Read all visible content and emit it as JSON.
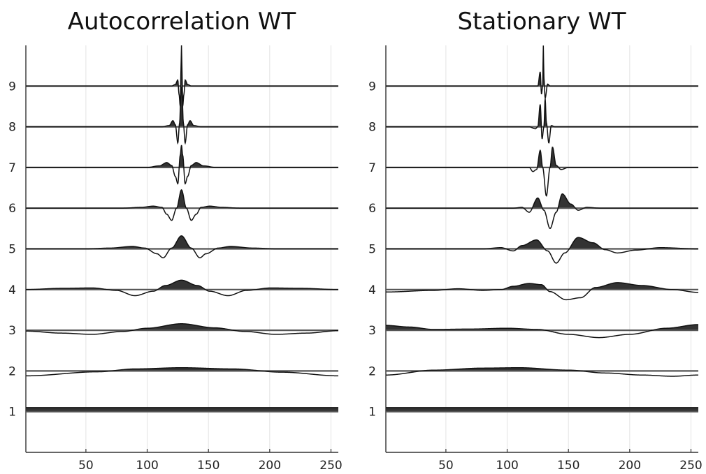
{
  "chart_data": [
    {
      "type": "line",
      "title": "Autocorrelation WT",
      "xlabel": "",
      "ylabel": "",
      "xlim": [
        1,
        256
      ],
      "ylim": [
        0,
        10
      ],
      "x_ticks": [
        50,
        100,
        150,
        200,
        250
      ],
      "y_ticks": [
        1,
        2,
        3,
        4,
        5,
        6,
        7,
        8,
        9
      ],
      "grid": true,
      "fill": "positive part of each curve filled dark",
      "series": [
        {
          "level": 1,
          "baseline": 1,
          "description": "near-constant positive band",
          "points": [
            [
              1,
              0.1
            ],
            [
              256,
              0.1
            ]
          ]
        },
        {
          "level": 2,
          "baseline": 2,
          "points": [
            [
              1,
              -0.12
            ],
            [
              60,
              -0.02
            ],
            [
              90,
              0.05
            ],
            [
              128,
              0.08
            ],
            [
              170,
              0.05
            ],
            [
              210,
              -0.03
            ],
            [
              256,
              -0.12
            ]
          ]
        },
        {
          "level": 3,
          "baseline": 3,
          "points": [
            [
              1,
              -0.02
            ],
            [
              30,
              -0.07
            ],
            [
              55,
              -0.1
            ],
            [
              80,
              -0.03
            ],
            [
              100,
              0.05
            ],
            [
              128,
              0.16
            ],
            [
              155,
              0.06
            ],
            [
              180,
              -0.03
            ],
            [
              205,
              -0.1
            ],
            [
              230,
              -0.07
            ],
            [
              256,
              -0.01
            ]
          ]
        },
        {
          "level": 4,
          "baseline": 4,
          "points": [
            [
              1,
              0.0
            ],
            [
              30,
              0.03
            ],
            [
              55,
              0.04
            ],
            [
              75,
              -0.02
            ],
            [
              90,
              -0.15
            ],
            [
              105,
              -0.04
            ],
            [
              115,
              0.1
            ],
            [
              128,
              0.23
            ],
            [
              141,
              0.1
            ],
            [
              151,
              -0.04
            ],
            [
              166,
              -0.15
            ],
            [
              181,
              -0.02
            ],
            [
              201,
              0.04
            ],
            [
              226,
              0.03
            ],
            [
              256,
              0.0
            ]
          ]
        },
        {
          "level": 5,
          "baseline": 5,
          "points": [
            [
              1,
              0.0
            ],
            [
              50,
              0.0
            ],
            [
              70,
              0.02
            ],
            [
              88,
              0.06
            ],
            [
              98,
              0.02
            ],
            [
              108,
              -0.12
            ],
            [
              113,
              -0.22
            ],
            [
              120,
              0.02
            ],
            [
              128,
              0.32
            ],
            [
              136,
              0.02
            ],
            [
              143,
              -0.22
            ],
            [
              148,
              -0.12
            ],
            [
              158,
              0.02
            ],
            [
              168,
              0.06
            ],
            [
              186,
              0.02
            ],
            [
              206,
              0.0
            ],
            [
              256,
              0.0
            ]
          ]
        },
        {
          "level": 6,
          "baseline": 6,
          "points": [
            [
              1,
              0.0
            ],
            [
              80,
              0.0
            ],
            [
              95,
              0.02
            ],
            [
              105,
              0.05
            ],
            [
              112,
              0.02
            ],
            [
              116,
              -0.15
            ],
            [
              120,
              -0.3
            ],
            [
              124,
              0.0
            ],
            [
              128,
              0.45
            ],
            [
              132,
              0.0
            ],
            [
              136,
              -0.3
            ],
            [
              140,
              -0.15
            ],
            [
              144,
              0.02
            ],
            [
              151,
              0.05
            ],
            [
              161,
              0.02
            ],
            [
              176,
              0.0
            ],
            [
              256,
              0.0
            ]
          ]
        },
        {
          "level": 7,
          "baseline": 7,
          "points": [
            [
              1,
              0.0
            ],
            [
              100,
              0.0
            ],
            [
              110,
              0.04
            ],
            [
              116,
              0.12
            ],
            [
              120,
              0.05
            ],
            [
              123,
              -0.22
            ],
            [
              125,
              -0.4
            ],
            [
              127,
              0.3
            ],
            [
              128,
              0.55
            ],
            [
              129,
              0.3
            ],
            [
              131,
              -0.4
            ],
            [
              133,
              -0.22
            ],
            [
              136,
              0.05
            ],
            [
              140,
              0.12
            ],
            [
              146,
              0.04
            ],
            [
              156,
              0.0
            ],
            [
              256,
              0.0
            ]
          ]
        },
        {
          "level": 8,
          "baseline": 8,
          "points": [
            [
              1,
              0.0
            ],
            [
              112,
              0.0
            ],
            [
              118,
              0.03
            ],
            [
              121,
              0.15
            ],
            [
              123,
              0.05
            ],
            [
              125,
              -0.4
            ],
            [
              126.5,
              0.1
            ],
            [
              127.5,
              0.8
            ],
            [
              128,
              1.0
            ],
            [
              128.5,
              0.8
            ],
            [
              129.5,
              0.1
            ],
            [
              131,
              -0.4
            ],
            [
              133,
              0.05
            ],
            [
              135,
              0.15
            ],
            [
              138,
              0.03
            ],
            [
              144,
              0.0
            ],
            [
              256,
              0.0
            ]
          ]
        },
        {
          "level": 9,
          "baseline": 9,
          "points": [
            [
              1,
              0.0
            ],
            [
              120,
              0.0
            ],
            [
              123,
              0.04
            ],
            [
              125,
              0.15
            ],
            [
              126,
              -0.2
            ],
            [
              127,
              -0.5
            ],
            [
              127.5,
              0.3
            ],
            [
              128,
              1.0
            ],
            [
              128.5,
              0.3
            ],
            [
              129,
              -0.5
            ],
            [
              130,
              -0.2
            ],
            [
              131,
              0.15
            ],
            [
              133,
              0.04
            ],
            [
              136,
              0.0
            ],
            [
              256,
              0.0
            ]
          ]
        }
      ]
    },
    {
      "type": "line",
      "title": "Stationary WT",
      "xlabel": "",
      "ylabel": "",
      "xlim": [
        1,
        256
      ],
      "ylim": [
        0,
        10
      ],
      "x_ticks": [
        50,
        100,
        150,
        200,
        250
      ],
      "y_ticks": [
        1,
        2,
        3,
        4,
        5,
        6,
        7,
        8,
        9
      ],
      "grid": true,
      "fill": "positive part of each curve filled dark",
      "series": [
        {
          "level": 1,
          "baseline": 1,
          "description": "near-constant positive band",
          "points": [
            [
              1,
              0.1
            ],
            [
              256,
              0.1
            ]
          ]
        },
        {
          "level": 2,
          "baseline": 2,
          "points": [
            [
              1,
              -0.1
            ],
            [
              40,
              0.02
            ],
            [
              80,
              0.07
            ],
            [
              110,
              0.08
            ],
            [
              150,
              0.02
            ],
            [
              180,
              -0.05
            ],
            [
              210,
              -0.1
            ],
            [
              235,
              -0.13
            ],
            [
              256,
              -0.1
            ]
          ]
        },
        {
          "level": 3,
          "baseline": 3,
          "points": [
            [
              1,
              0.12
            ],
            [
              20,
              0.08
            ],
            [
              40,
              0.02
            ],
            [
              70,
              0.03
            ],
            [
              100,
              0.05
            ],
            [
              125,
              0.02
            ],
            [
              150,
              -0.1
            ],
            [
              175,
              -0.18
            ],
            [
              200,
              -0.1
            ],
            [
              230,
              0.05
            ],
            [
              256,
              0.14
            ]
          ]
        },
        {
          "level": 4,
          "baseline": 4,
          "points": [
            [
              1,
              -0.06
            ],
            [
              40,
              -0.02
            ],
            [
              60,
              0.02
            ],
            [
              80,
              -0.02
            ],
            [
              95,
              0.0
            ],
            [
              105,
              0.08
            ],
            [
              118,
              0.15
            ],
            [
              128,
              0.12
            ],
            [
              135,
              -0.05
            ],
            [
              148,
              -0.25
            ],
            [
              160,
              -0.2
            ],
            [
              172,
              0.05
            ],
            [
              190,
              0.17
            ],
            [
              210,
              0.1
            ],
            [
              235,
              0.0
            ],
            [
              256,
              -0.07
            ]
          ]
        },
        {
          "level": 5,
          "baseline": 5,
          "points": [
            [
              1,
              0.0
            ],
            [
              80,
              0.0
            ],
            [
              95,
              0.03
            ],
            [
              105,
              -0.05
            ],
            [
              112,
              0.08
            ],
            [
              124,
              0.22
            ],
            [
              133,
              -0.05
            ],
            [
              140,
              -0.35
            ],
            [
              147,
              -0.1
            ],
            [
              158,
              0.28
            ],
            [
              170,
              0.15
            ],
            [
              180,
              -0.02
            ],
            [
              190,
              -0.1
            ],
            [
              205,
              -0.03
            ],
            [
              225,
              0.03
            ],
            [
              256,
              0.0
            ]
          ]
        },
        {
          "level": 6,
          "baseline": 6,
          "points": [
            [
              1,
              0.0
            ],
            [
              105,
              0.0
            ],
            [
              112,
              0.02
            ],
            [
              118,
              -0.1
            ],
            [
              125,
              0.25
            ],
            [
              130,
              -0.05
            ],
            [
              135,
              -0.5
            ],
            [
              140,
              -0.1
            ],
            [
              145,
              0.35
            ],
            [
              152,
              0.1
            ],
            [
              158,
              -0.05
            ],
            [
              165,
              0.02
            ],
            [
              176,
              0.0
            ],
            [
              256,
              0.0
            ]
          ]
        },
        {
          "level": 7,
          "baseline": 7,
          "points": [
            [
              1,
              0.0
            ],
            [
              112,
              0.0
            ],
            [
              118,
              0.0
            ],
            [
              121,
              -0.1
            ],
            [
              124,
              -0.05
            ],
            [
              127,
              0.42
            ],
            [
              129,
              0.0
            ],
            [
              132,
              -0.7
            ],
            [
              135,
              0.0
            ],
            [
              137,
              0.5
            ],
            [
              140,
              0.05
            ],
            [
              144,
              -0.05
            ],
            [
              150,
              0.0
            ],
            [
              256,
              0.0
            ]
          ]
        },
        {
          "level": 8,
          "baseline": 8,
          "points": [
            [
              1,
              0.0
            ],
            [
              118,
              0.0
            ],
            [
              123,
              -0.05
            ],
            [
              125,
              0.0
            ],
            [
              127,
              0.55
            ],
            [
              128.5,
              -0.3
            ],
            [
              130,
              0.0
            ],
            [
              131,
              0.7
            ],
            [
              132,
              0.1
            ],
            [
              134,
              -0.4
            ],
            [
              136,
              0.03
            ],
            [
              139,
              0.0
            ],
            [
              256,
              0.0
            ]
          ]
        },
        {
          "level": 9,
          "baseline": 9,
          "points": [
            [
              1,
              0.0
            ],
            [
              122,
              0.0
            ],
            [
              125,
              0.0
            ],
            [
              127,
              0.35
            ],
            [
              128,
              -0.2
            ],
            [
              129,
              0.0
            ],
            [
              129.5,
              1.0
            ],
            [
              130,
              0.2
            ],
            [
              131,
              -0.3
            ],
            [
              133,
              0.05
            ],
            [
              135,
              0.0
            ],
            [
              256,
              0.0
            ]
          ]
        }
      ]
    }
  ]
}
